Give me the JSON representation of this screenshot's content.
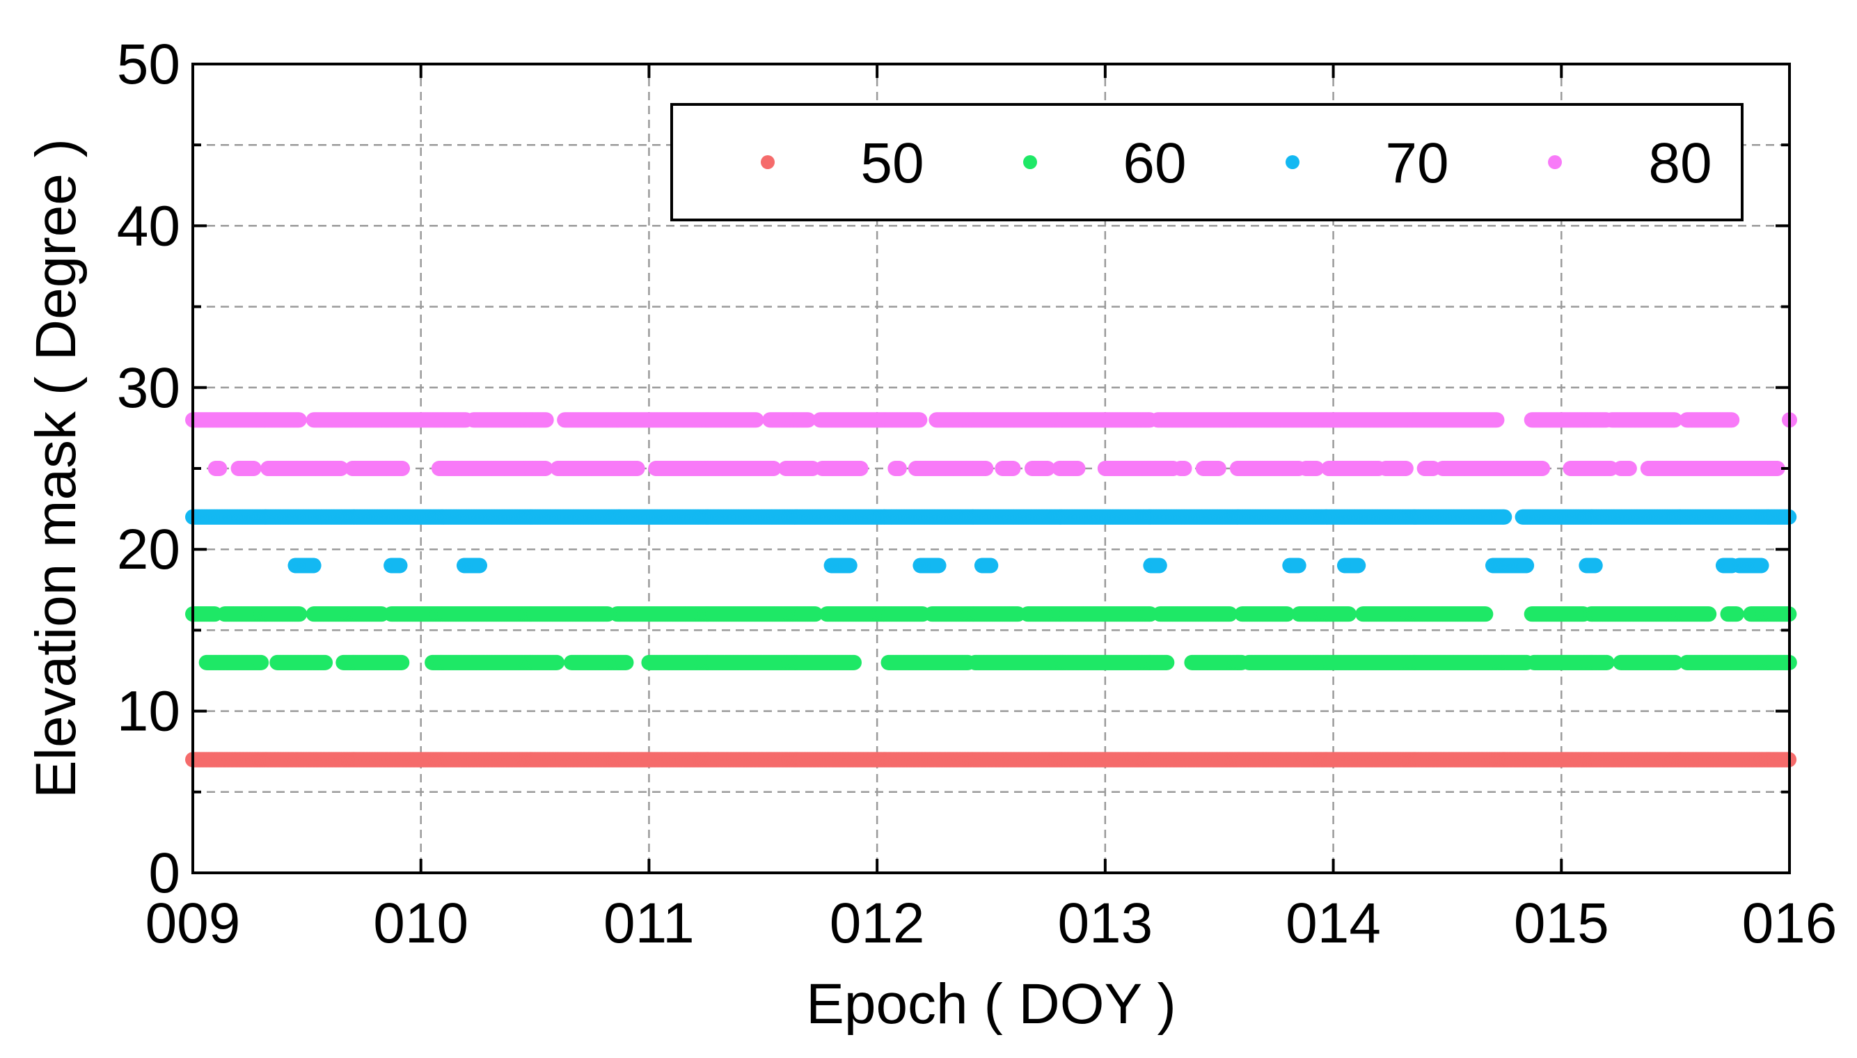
{
  "chart_data": {
    "type": "scatter",
    "title": "",
    "xlabel": "Epoch ( DOY )",
    "ylabel": "Elevation mask ( Degree )",
    "xlim": [
      9,
      16
    ],
    "ylim": [
      0,
      50
    ],
    "x_ticks": [
      9,
      10,
      11,
      12,
      13,
      14,
      15,
      16
    ],
    "x_tick_labels": [
      "009",
      "010",
      "011",
      "012",
      "013",
      "014",
      "015",
      "016"
    ],
    "y_ticks": [
      0,
      10,
      20,
      30,
      40,
      50
    ],
    "y_tick_labels": [
      "0",
      "10",
      "20",
      "30",
      "40",
      "50"
    ],
    "grid": true,
    "legend_position": "top-right",
    "series": [
      {
        "name": "50",
        "color": "#f56b6b",
        "points": [
          {
            "y": 7,
            "ranges": [
              [
                9.0,
                16.0
              ]
            ]
          }
        ]
      },
      {
        "name": "60",
        "color": "#1ee866",
        "points": [
          {
            "y": 16,
            "ranges": [
              [
                9.0,
                9.1
              ],
              [
                9.14,
                9.47
              ],
              [
                9.53,
                9.83
              ],
              [
                9.87,
                10.82
              ],
              [
                10.86,
                11.73
              ],
              [
                11.78,
                12.2
              ],
              [
                12.24,
                12.62
              ],
              [
                12.66,
                13.2
              ],
              [
                13.24,
                13.55
              ],
              [
                13.6,
                13.8
              ],
              [
                13.85,
                14.07
              ],
              [
                14.13,
                14.67
              ],
              [
                14.87,
                15.1
              ],
              [
                15.13,
                15.65
              ],
              [
                15.73,
                15.77
              ],
              [
                15.83,
                16.0
              ]
            ]
          },
          {
            "y": 13,
            "ranges": [
              [
                9.06,
                9.3
              ],
              [
                9.37,
                9.58
              ],
              [
                9.66,
                9.92
              ],
              [
                10.05,
                10.6
              ],
              [
                10.66,
                10.9
              ],
              [
                11.0,
                11.9
              ],
              [
                12.05,
                12.4
              ],
              [
                12.43,
                13.27
              ],
              [
                13.38,
                13.6
              ],
              [
                13.63,
                14.85
              ],
              [
                14.88,
                15.2
              ],
              [
                15.26,
                15.5
              ],
              [
                15.55,
                16.0
              ]
            ]
          }
        ]
      },
      {
        "name": "70",
        "color": "#13b8f2",
        "points": [
          {
            "y": 22,
            "ranges": [
              [
                9.0,
                14.75
              ],
              [
                14.83,
                16.0
              ]
            ]
          },
          {
            "y": 19,
            "ranges": [
              [
                9.45,
                9.53
              ],
              [
                9.87,
                9.91
              ],
              [
                10.19,
                10.26
              ],
              [
                11.8,
                11.88
              ],
              [
                12.19,
                12.27
              ],
              [
                12.46,
                12.5
              ],
              [
                13.2,
                13.24
              ],
              [
                13.81,
                13.85
              ],
              [
                14.05,
                14.11
              ],
              [
                14.7,
                14.85
              ],
              [
                15.11,
                15.15
              ],
              [
                15.71,
                15.75
              ],
              [
                15.78,
                15.88
              ]
            ]
          }
        ]
      },
      {
        "name": "80",
        "color": "#f87af8",
        "points": [
          {
            "y": 28,
            "ranges": [
              [
                9.0,
                9.47
              ],
              [
                9.53,
                10.2
              ],
              [
                10.23,
                10.55
              ],
              [
                10.63,
                11.47
              ],
              [
                11.53,
                11.7
              ],
              [
                11.75,
                12.19
              ],
              [
                12.26,
                13.2
              ],
              [
                13.23,
                14.72
              ],
              [
                14.87,
                15.2
              ],
              [
                15.22,
                15.5
              ],
              [
                15.55,
                15.75
              ],
              [
                16.0,
                16.0
              ]
            ]
          },
          {
            "y": 25,
            "ranges": [
              [
                9.1,
                9.12
              ],
              [
                9.2,
                9.27
              ],
              [
                9.33,
                9.65
              ],
              [
                9.7,
                9.92
              ],
              [
                10.08,
                10.55
              ],
              [
                10.6,
                10.95
              ],
              [
                11.03,
                11.55
              ],
              [
                11.6,
                11.72
              ],
              [
                11.76,
                11.93
              ],
              [
                12.08,
                12.1
              ],
              [
                12.17,
                12.48
              ],
              [
                12.55,
                12.6
              ],
              [
                12.68,
                12.75
              ],
              [
                12.8,
                12.88
              ],
              [
                13.0,
                13.3
              ],
              [
                13.33,
                13.35
              ],
              [
                13.43,
                13.5
              ],
              [
                13.58,
                13.85
              ],
              [
                13.88,
                13.93
              ],
              [
                13.98,
                14.2
              ],
              [
                14.23,
                14.32
              ],
              [
                14.4,
                14.44
              ],
              [
                14.48,
                14.92
              ],
              [
                15.04,
                15.22
              ],
              [
                15.26,
                15.3
              ],
              [
                15.38,
                15.95
              ]
            ]
          }
        ]
      }
    ]
  }
}
